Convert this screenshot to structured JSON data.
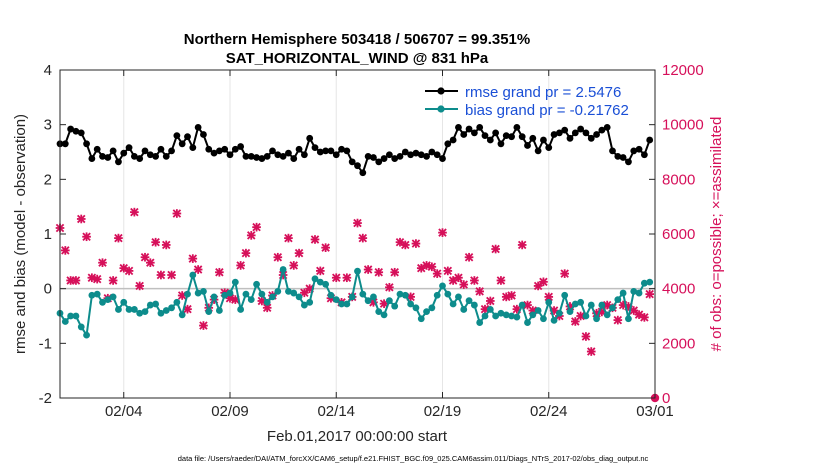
{
  "chart_data": {
    "type": "line",
    "title": "Northern Hemisphere 503418 / 506707 = 99.351%",
    "subtitle": "SAT_HORIZONTAL_WIND @ 831 hPa",
    "xlabel": "Feb.01,2017 00:00:00 start",
    "ylabel": "rmse and bias (model - observation)",
    "y2label": "# of obs: o=possible; ×=assimilated",
    "xlim": [
      1,
      29
    ],
    "ylim": [
      -2,
      4
    ],
    "y2lim": [
      0,
      12000
    ],
    "x_ticks": [
      {
        "value": 4,
        "label": "02/04"
      },
      {
        "value": 9,
        "label": "02/09"
      },
      {
        "value": 14,
        "label": "02/14"
      },
      {
        "value": 19,
        "label": "02/19"
      },
      {
        "value": 24,
        "label": "02/24"
      },
      {
        "value": 29,
        "label": "03/01"
      }
    ],
    "y_ticks": [
      -2,
      -1,
      0,
      1,
      2,
      3,
      4
    ],
    "y2_ticks": [
      0,
      2000,
      4000,
      6000,
      8000,
      10000,
      12000
    ],
    "zero_line": 0,
    "series": [
      {
        "name": "rmse grand pr = 2.5476",
        "color": "#000000",
        "axis": "left",
        "x": [
          1.0,
          1.25,
          1.5,
          1.75,
          2.0,
          2.25,
          2.5,
          2.75,
          3.0,
          3.25,
          3.5,
          3.75,
          4.0,
          4.25,
          4.5,
          4.75,
          5.0,
          5.25,
          5.5,
          5.75,
          6.0,
          6.25,
          6.5,
          6.75,
          7.0,
          7.25,
          7.5,
          7.75,
          8.0,
          8.25,
          8.5,
          8.75,
          9.0,
          9.25,
          9.5,
          9.75,
          10.0,
          10.25,
          10.5,
          10.75,
          11.0,
          11.25,
          11.5,
          11.75,
          12.0,
          12.25,
          12.5,
          12.75,
          13.0,
          13.25,
          13.5,
          13.75,
          14.0,
          14.25,
          14.5,
          14.75,
          15.0,
          15.25,
          15.5,
          15.75,
          16.0,
          16.25,
          16.5,
          16.75,
          17.0,
          17.25,
          17.5,
          17.75,
          18.0,
          18.25,
          18.5,
          18.75,
          19.0,
          19.25,
          19.5,
          19.75,
          20.0,
          20.25,
          20.5,
          20.75,
          21.0,
          21.25,
          21.5,
          21.75,
          22.0,
          22.25,
          22.5,
          22.75,
          23.0,
          23.25,
          23.5,
          23.75,
          24.0,
          24.25,
          24.5,
          24.75,
          25.0,
          25.25,
          25.5,
          25.75,
          26.0,
          26.25,
          26.5,
          26.75,
          27.0,
          27.25,
          27.5,
          27.75,
          28.0,
          28.25,
          28.5,
          28.75
        ],
        "values": [
          2.65,
          2.65,
          2.92,
          2.88,
          2.85,
          2.65,
          2.38,
          2.55,
          2.42,
          2.4,
          2.52,
          2.32,
          2.48,
          2.58,
          2.42,
          2.38,
          2.52,
          2.45,
          2.42,
          2.55,
          2.42,
          2.52,
          2.8,
          2.65,
          2.78,
          2.58,
          2.95,
          2.82,
          2.55,
          2.48,
          2.52,
          2.55,
          2.45,
          2.55,
          2.6,
          2.42,
          2.42,
          2.4,
          2.38,
          2.42,
          2.52,
          2.45,
          2.42,
          2.48,
          2.38,
          2.55,
          2.45,
          2.75,
          2.58,
          2.5,
          2.52,
          2.52,
          2.45,
          2.55,
          2.52,
          2.32,
          2.25,
          2.12,
          2.42,
          2.4,
          2.32,
          2.38,
          2.45,
          2.38,
          2.42,
          2.5,
          2.45,
          2.48,
          2.45,
          2.42,
          2.5,
          2.45,
          2.38,
          2.65,
          2.72,
          2.95,
          2.82,
          2.92,
          2.85,
          2.95,
          2.8,
          2.72,
          2.85,
          2.65,
          2.8,
          2.78,
          2.95,
          2.78,
          2.62,
          2.75,
          2.52,
          2.72,
          2.58,
          2.82,
          2.85,
          2.9,
          2.75,
          2.85,
          2.92,
          2.85,
          2.75,
          2.82,
          2.9,
          2.95,
          2.52,
          2.42,
          2.4,
          2.32,
          2.52,
          2.55,
          2.45,
          2.72
        ]
      },
      {
        "name": "bias grand pr = -0.21762",
        "color": "#0d8c8c",
        "axis": "left",
        "x": [
          1.0,
          1.25,
          1.5,
          1.75,
          2.0,
          2.25,
          2.5,
          2.75,
          3.0,
          3.25,
          3.5,
          3.75,
          4.0,
          4.25,
          4.5,
          4.75,
          5.0,
          5.25,
          5.5,
          5.75,
          6.0,
          6.25,
          6.5,
          6.75,
          7.0,
          7.25,
          7.5,
          7.75,
          8.0,
          8.25,
          8.5,
          8.75,
          9.0,
          9.25,
          9.5,
          9.75,
          10.0,
          10.25,
          10.5,
          10.75,
          11.0,
          11.25,
          11.5,
          11.75,
          12.0,
          12.25,
          12.5,
          12.75,
          13.0,
          13.25,
          13.5,
          13.75,
          14.0,
          14.25,
          14.5,
          14.75,
          15.0,
          15.25,
          15.5,
          15.75,
          16.0,
          16.25,
          16.5,
          16.75,
          17.0,
          17.25,
          17.5,
          17.75,
          18.0,
          18.25,
          18.5,
          18.75,
          19.0,
          19.25,
          19.5,
          19.75,
          20.0,
          20.25,
          20.5,
          20.75,
          21.0,
          21.25,
          21.5,
          21.75,
          22.0,
          22.25,
          22.5,
          22.75,
          23.0,
          23.25,
          23.5,
          23.75,
          24.0,
          24.25,
          24.5,
          24.75,
          25.0,
          25.25,
          25.5,
          25.75,
          26.0,
          26.25,
          26.5,
          26.75,
          27.0,
          27.25,
          27.5,
          27.75,
          28.0,
          28.25,
          28.5,
          28.75
        ],
        "values": [
          -0.45,
          -0.6,
          -0.5,
          -0.5,
          -0.7,
          -0.85,
          -0.12,
          -0.1,
          -0.25,
          -0.2,
          -0.15,
          -0.38,
          -0.25,
          -0.38,
          -0.38,
          -0.45,
          -0.42,
          -0.3,
          -0.28,
          -0.45,
          -0.4,
          -0.35,
          -0.25,
          -0.48,
          -0.1,
          0.25,
          -0.08,
          -0.05,
          -0.42,
          -0.15,
          -0.4,
          -0.12,
          -0.08,
          0.12,
          -0.38,
          -0.1,
          -0.2,
          0.08,
          -0.1,
          -0.25,
          -0.15,
          -0.05,
          0.35,
          -0.05,
          -0.08,
          -0.15,
          -0.3,
          -0.25,
          0.18,
          0.12,
          0.08,
          -0.12,
          -0.2,
          -0.28,
          -0.28,
          -0.15,
          0.32,
          -0.1,
          -0.22,
          -0.15,
          -0.42,
          -0.48,
          -0.22,
          -0.32,
          -0.1,
          -0.12,
          -0.28,
          -0.35,
          -0.55,
          -0.42,
          -0.35,
          -0.12,
          0.05,
          -0.1,
          -0.28,
          -0.15,
          -0.38,
          -0.22,
          -0.3,
          -0.62,
          -0.5,
          -0.38,
          -0.5,
          -0.45,
          -0.48,
          -0.5,
          -0.52,
          -0.3,
          -0.62,
          -0.48,
          -0.4,
          -0.55,
          -0.25,
          -0.58,
          -0.45,
          -0.12,
          -0.42,
          -0.28,
          -0.25,
          -0.5,
          -0.3,
          -0.55,
          -0.3,
          -0.48,
          -0.35,
          -0.2,
          -0.08,
          -0.55,
          -0.05,
          -0.08,
          0.1,
          0.12
        ]
      },
      {
        "name": "possible obs",
        "color": "#d6105a",
        "axis": "right",
        "marker": "o",
        "x": [
          29
        ],
        "values": [
          0
        ]
      },
      {
        "name": "assimilated obs",
        "color": "#d6105a",
        "axis": "right",
        "marker": "x",
        "x": [
          1.0,
          1.25,
          1.5,
          1.75,
          2.0,
          2.25,
          2.5,
          2.75,
          3.0,
          3.25,
          3.5,
          3.75,
          4.0,
          4.25,
          4.5,
          4.75,
          5.0,
          5.25,
          5.5,
          5.75,
          6.0,
          6.25,
          6.5,
          6.75,
          7.0,
          7.25,
          7.5,
          7.75,
          8.0,
          8.25,
          8.5,
          8.75,
          9.0,
          9.25,
          9.5,
          9.75,
          10.0,
          10.25,
          10.5,
          10.75,
          11.0,
          11.25,
          11.5,
          11.75,
          12.0,
          12.25,
          12.5,
          12.75,
          13.0,
          13.25,
          13.5,
          13.75,
          14.0,
          14.25,
          14.5,
          14.75,
          15.0,
          15.25,
          15.5,
          15.75,
          16.0,
          16.25,
          16.5,
          16.75,
          17.0,
          17.25,
          17.5,
          17.75,
          18.0,
          18.25,
          18.5,
          18.75,
          19.0,
          19.25,
          19.5,
          19.75,
          20.0,
          20.25,
          20.5,
          20.75,
          21.0,
          21.25,
          21.5,
          21.75,
          22.0,
          22.25,
          22.5,
          22.75,
          23.0,
          23.25,
          23.5,
          23.75,
          24.0,
          24.25,
          24.5,
          24.75,
          25.0,
          25.25,
          25.5,
          25.75,
          26.0,
          26.25,
          26.5,
          26.75,
          27.0,
          27.25,
          27.5,
          27.75,
          28.0,
          28.25,
          28.5,
          28.75
        ],
        "values": [
          6220,
          5400,
          4300,
          4300,
          6550,
          5900,
          4400,
          4350,
          4950,
          3650,
          4300,
          5850,
          4750,
          4650,
          6800,
          4100,
          5150,
          4950,
          5700,
          4500,
          5600,
          4500,
          6750,
          3750,
          3250,
          5100,
          4700,
          2650,
          3300,
          3600,
          4600,
          3850,
          3650,
          3600,
          4850,
          5300,
          5950,
          6250,
          3550,
          3300,
          3750,
          5150,
          4500,
          5850,
          4850,
          5300,
          3850,
          4000,
          5800,
          4650,
          5500,
          3650,
          4400,
          3500,
          4400,
          3700,
          6400,
          5850,
          4700,
          3500,
          4600,
          3450,
          4050,
          4600,
          5700,
          5600,
          3700,
          5650,
          4750,
          4850,
          4800,
          4550,
          6050,
          4650,
          4300,
          4400,
          4150,
          5150,
          4300,
          3900,
          3250,
          3550,
          5450,
          4300,
          3700,
          3750,
          3250,
          5600,
          3400,
          3200,
          4100,
          4250,
          3700,
          3200,
          3000,
          4550,
          3350,
          2800,
          3000,
          2250,
          1700,
          3100,
          3150,
          3400,
          3300,
          2850,
          3400,
          3350,
          3200,
          3050,
          2950,
          3800
        ]
      }
    ]
  },
  "footer": "data file: /Users/raeder/DAI/ATM_forcXX/CAM6_setup/f.e21.FHIST_BGC.f09_025.CAM6assim.011/Diags_NTrS_2017-02/obs_diag_output.nc"
}
